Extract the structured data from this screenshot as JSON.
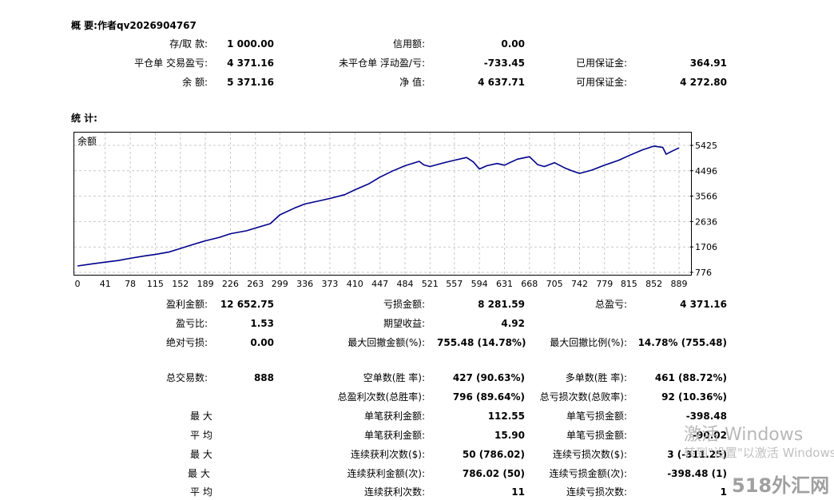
{
  "summary": {
    "title": "概 要:作者qv2026904767",
    "deposit_label": "存/取 款:",
    "deposit_value": "1 000.00",
    "credit_label": "信用额:",
    "credit_value": "0.00",
    "closed_pl_label": "平仓单 交易盈亏:",
    "closed_pl_value": "4 371.16",
    "floating_pl_label": "未平仓单 浮动盈/亏:",
    "floating_pl_value": "-733.45",
    "margin_label": "已用保证金:",
    "margin_value": "364.91",
    "balance_label": "余 额:",
    "balance_value": "5 371.16",
    "equity_label": "净 值:",
    "equity_value": "4 637.71",
    "free_margin_label": "可用保证金:",
    "free_margin_value": "4 272.80"
  },
  "stats_title": "统 计:",
  "chart_data": {
    "type": "line",
    "series": [
      {
        "name": "余额",
        "color": "#00008b"
      }
    ],
    "x_ticks": [
      "0",
      "41",
      "78",
      "115",
      "152",
      "189",
      "226",
      "263",
      "299",
      "336",
      "373",
      "410",
      "447",
      "484",
      "521",
      "557",
      "594",
      "631",
      "668",
      "705",
      "742",
      "779",
      "815",
      "852",
      "889"
    ],
    "y_ticks": [
      "5425",
      "4496",
      "3566",
      "2636",
      "1706",
      "776"
    ],
    "ylim": [
      776,
      5425
    ],
    "xlim": [
      0,
      889
    ],
    "grid": true,
    "points": [
      [
        0,
        1010
      ],
      [
        20,
        1080
      ],
      [
        41,
        1150
      ],
      [
        60,
        1210
      ],
      [
        78,
        1290
      ],
      [
        100,
        1380
      ],
      [
        115,
        1430
      ],
      [
        135,
        1520
      ],
      [
        152,
        1650
      ],
      [
        175,
        1830
      ],
      [
        189,
        1930
      ],
      [
        210,
        2060
      ],
      [
        226,
        2190
      ],
      [
        250,
        2300
      ],
      [
        263,
        2400
      ],
      [
        285,
        2560
      ],
      [
        299,
        2880
      ],
      [
        320,
        3120
      ],
      [
        336,
        3280
      ],
      [
        355,
        3380
      ],
      [
        373,
        3480
      ],
      [
        395,
        3620
      ],
      [
        410,
        3800
      ],
      [
        430,
        4010
      ],
      [
        447,
        4260
      ],
      [
        465,
        4480
      ],
      [
        484,
        4680
      ],
      [
        505,
        4840
      ],
      [
        512,
        4710
      ],
      [
        521,
        4650
      ],
      [
        540,
        4780
      ],
      [
        557,
        4880
      ],
      [
        575,
        4980
      ],
      [
        585,
        4820
      ],
      [
        594,
        4560
      ],
      [
        605,
        4680
      ],
      [
        620,
        4760
      ],
      [
        631,
        4700
      ],
      [
        650,
        4920
      ],
      [
        668,
        5010
      ],
      [
        680,
        4720
      ],
      [
        690,
        4650
      ],
      [
        705,
        4790
      ],
      [
        720,
        4600
      ],
      [
        730,
        4500
      ],
      [
        742,
        4400
      ],
      [
        760,
        4520
      ],
      [
        779,
        4700
      ],
      [
        800,
        4880
      ],
      [
        815,
        5050
      ],
      [
        835,
        5260
      ],
      [
        852,
        5400
      ],
      [
        865,
        5350
      ],
      [
        870,
        5100
      ],
      [
        880,
        5230
      ],
      [
        889,
        5330
      ]
    ]
  },
  "stats": {
    "gross_profit_label": "盈利金额:",
    "gross_profit_value": "12 652.75",
    "gross_loss_label": "亏损金额:",
    "gross_loss_value": "8 281.59",
    "total_net_label": "总盈亏:",
    "total_net_value": "4 371.16",
    "profit_factor_label": "盈亏比:",
    "profit_factor_value": "1.53",
    "expected_payoff_label": "期望收益:",
    "expected_payoff_value": "4.92",
    "abs_drawdown_label": "绝对亏损:",
    "abs_drawdown_value": "0.00",
    "max_drawdown_label": "最大回撤金额(%):",
    "max_drawdown_value": "755.48 (14.78%)",
    "rel_drawdown_label": "最大回撤比例(%):",
    "rel_drawdown_value": "14.78% (755.48)",
    "total_trades_label": "总交易数:",
    "total_trades_value": "888",
    "short_label": "空单数(胜 率):",
    "short_value": "427 (90.63%)",
    "long_label": "多单数(胜 率):",
    "long_value": "461 (88.72%)",
    "profit_trades_label": "总盈利次数(总胜率):",
    "profit_trades_value": "796 (89.64%)",
    "loss_trades_label": "总亏损次数(总败率):",
    "loss_trades_value": "92 (10.36%)",
    "max_label": "最 大",
    "avg_label": "平 均",
    "max2_label": "最 大",
    "max3_label": "最 大",
    "avg2_label": "平 均",
    "largest_profit_label": "单笔获利金额:",
    "largest_profit_value": "112.55",
    "largest_loss_label": "单笔亏损金额:",
    "largest_loss_value": "-398.48",
    "avg_profit_label": "单笔获利金额:",
    "avg_profit_value": "15.90",
    "avg_loss_label": "单笔亏损金额:",
    "avg_loss_value": "-90.02",
    "max_consec_wins_label": "连续获利次数($):",
    "max_consec_wins_value": "50 (786.02)",
    "max_consec_losses_label": "连续亏损次数($):",
    "max_consec_losses_value": "3 (-311.25)",
    "max_consec_profit_label": "连续获利金额(次):",
    "max_consec_profit_value": "786.02 (50)",
    "max_consec_loss_label": "连续亏损金额(次):",
    "max_consec_loss_value": "-398.48 (1)",
    "avg_consec_wins_label": "连续获利次数:",
    "avg_consec_wins_value": "11",
    "avg_consec_losses_label": "连续亏损次数:",
    "avg_consec_losses_value": "1"
  },
  "watermark": {
    "line1": "激活 Windows",
    "line2": "转到\"设置\"以激活 Windows。",
    "logo": "518外汇网"
  }
}
